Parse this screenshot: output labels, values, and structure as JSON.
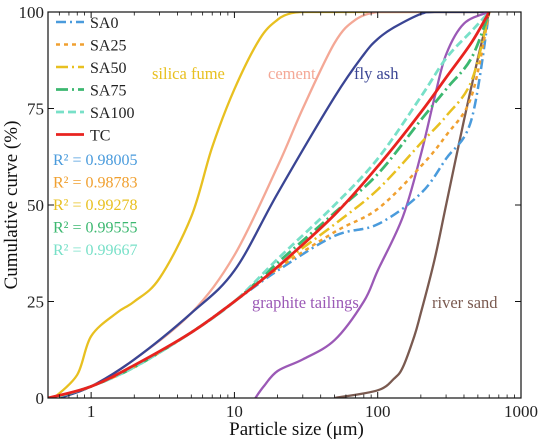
{
  "chart_data": {
    "type": "line",
    "xlabel": "Particle size (μm)",
    "ylabel": "Cumulative curve (%)",
    "x_scale": "log",
    "xlim": [
      0.5,
      1000
    ],
    "ylim": [
      0,
      100
    ],
    "x_ticks": [
      1,
      10,
      100,
      1000
    ],
    "x_tick_labels": [
      "1",
      "10",
      "100",
      "1000"
    ],
    "y_ticks": [
      0,
      25,
      50,
      75,
      100
    ],
    "y_tick_labels": [
      "0",
      "25",
      "50",
      "75",
      "100"
    ],
    "legend_placement": "top-left",
    "legend": [
      {
        "label": "SA0",
        "series": "SA0"
      },
      {
        "label": "SA25",
        "series": "SA25"
      },
      {
        "label": "SA50",
        "series": "SA50"
      },
      {
        "label": "SA75",
        "series": "SA75"
      },
      {
        "label": "SA100",
        "series": "SA100"
      },
      {
        "label": "TC",
        "series": "TC"
      }
    ],
    "r2": [
      {
        "label": "R² = 0.98005",
        "color": "#4a9bdc"
      },
      {
        "label": "R² = 0.98783",
        "color": "#f0a030"
      },
      {
        "label": "R² = 0.99278",
        "color": "#e8c020"
      },
      {
        "label": "R² = 0.99555",
        "color": "#3cb870"
      },
      {
        "label": "R² = 0.99667",
        "color": "#78e0c8"
      }
    ],
    "annotations": [
      {
        "text": "silica fume",
        "color": "#e8c020"
      },
      {
        "text": "cement",
        "color": "#f4a896"
      },
      {
        "text": "fly ash",
        "color": "#3a4594"
      },
      {
        "text": "graphite tailings",
        "color": "#9b59b6"
      },
      {
        "text": "river sand",
        "color": "#7a5a50"
      }
    ],
    "series": [
      {
        "name": "SA0",
        "color": "#4a9bdc",
        "dash": "10 4 2 4",
        "width": 2.5,
        "x": [
          0.6,
          1,
          2,
          5,
          10,
          20,
          50,
          100,
          200,
          300,
          450,
          600
        ],
        "y": [
          0.5,
          3,
          8,
          17,
          25,
          33,
          42,
          45,
          53,
          62,
          72,
          100
        ]
      },
      {
        "name": "SA25",
        "color": "#f0a030",
        "dash": "4 4",
        "width": 2.5,
        "x": [
          0.6,
          1,
          2,
          5,
          10,
          20,
          50,
          100,
          200,
          300,
          450,
          600
        ],
        "y": [
          0.5,
          3,
          8,
          17,
          25,
          33.5,
          43,
          49,
          60,
          68,
          78,
          100
        ]
      },
      {
        "name": "SA50",
        "color": "#e8c020",
        "dash": "12 4 2 4",
        "width": 2.5,
        "x": [
          0.6,
          1,
          2,
          5,
          10,
          20,
          50,
          100,
          200,
          300,
          450,
          600
        ],
        "y": [
          0.5,
          3,
          8,
          17,
          25,
          34,
          45,
          54,
          66,
          73,
          82,
          100
        ]
      },
      {
        "name": "SA75",
        "color": "#3cb870",
        "dash": "12 4 2 4",
        "width": 2.8,
        "x": [
          0.6,
          1,
          2,
          5,
          10,
          20,
          50,
          100,
          200,
          300,
          450,
          600
        ],
        "y": [
          0.5,
          3,
          8,
          17,
          25,
          35,
          48,
          58,
          72,
          80,
          88,
          100
        ]
      },
      {
        "name": "SA100",
        "color": "#78e0c8",
        "dash": "8 4",
        "width": 2.8,
        "x": [
          0.6,
          1,
          2,
          5,
          10,
          20,
          50,
          100,
          200,
          300,
          450,
          600
        ],
        "y": [
          0.5,
          3,
          8,
          17,
          25,
          36,
          50,
          62,
          78,
          88,
          95,
          100
        ]
      },
      {
        "name": "TC",
        "color": "#e8231f",
        "dash": "",
        "width": 2.8,
        "x": [
          0.5,
          1,
          2,
          5,
          10,
          20,
          50,
          100,
          200,
          300,
          450,
          600
        ],
        "y": [
          0,
          3,
          8.5,
          17,
          25,
          34,
          47.5,
          60,
          74,
          83,
          92,
          100
        ]
      },
      {
        "name": "silica fume",
        "color": "#e8c020",
        "dash": "",
        "width": 2.3,
        "x": [
          0.55,
          0.8,
          1,
          1.5,
          2,
          3,
          5,
          7,
          10,
          15,
          20,
          25,
          30,
          50,
          100,
          600
        ],
        "y": [
          0,
          6,
          16,
          22,
          25,
          31,
          47,
          65,
          80,
          93,
          98,
          99.7,
          100,
          100,
          100,
          100
        ]
      },
      {
        "name": "cement",
        "color": "#f4a896",
        "dash": "",
        "width": 2.3,
        "x": [
          0.6,
          1,
          2,
          5,
          10,
          20,
          30,
          50,
          70,
          100,
          150,
          200,
          600
        ],
        "y": [
          0,
          3,
          10,
          22,
          37,
          60,
          75,
          92,
          98,
          100,
          100,
          100,
          100
        ]
      },
      {
        "name": "fly ash",
        "color": "#3a4594",
        "dash": "",
        "width": 2.3,
        "x": [
          0.6,
          1,
          2,
          5,
          10,
          20,
          50,
          80,
          100,
          130,
          200,
          250,
          600
        ],
        "y": [
          0,
          3,
          10,
          22,
          33,
          53,
          78,
          89,
          93,
          96,
          99.5,
          100,
          100
        ]
      },
      {
        "name": "graphite tailings",
        "color": "#9b59b6",
        "dash": "",
        "width": 2.3,
        "x": [
          14,
          16,
          20,
          30,
          50,
          80,
          100,
          150,
          200,
          250,
          300,
          400,
          600
        ],
        "y": [
          0,
          3,
          7,
          10,
          15,
          25,
          33,
          47,
          63,
          78,
          89,
          97,
          100
        ]
      },
      {
        "name": "river sand",
        "color": "#7a5a50",
        "dash": "",
        "width": 2.3,
        "x": [
          50,
          100,
          130,
          150,
          180,
          200,
          250,
          300,
          400,
          500,
          600
        ],
        "y": [
          0,
          2,
          5,
          8,
          16,
          22,
          36,
          50,
          72,
          88,
          100
        ]
      }
    ]
  }
}
